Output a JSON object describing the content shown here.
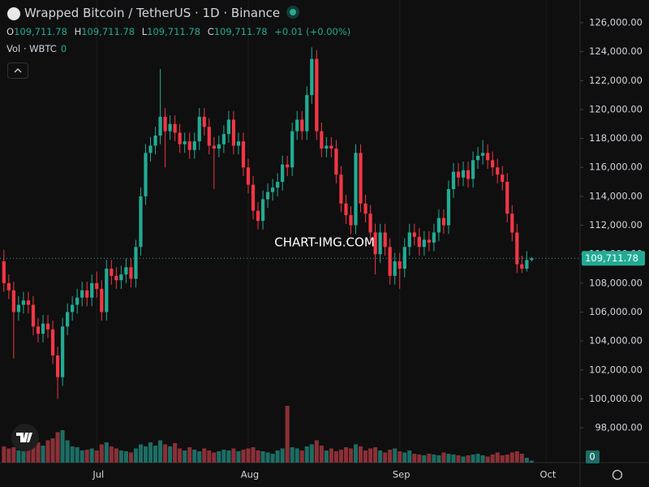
{
  "chart_data": {
    "type": "candlestick",
    "title": "Wrapped Bitcoin / TetherUS · 1D · Binance",
    "ohlc_legend": [
      {
        "label": "O",
        "value": "109,711.78"
      },
      {
        "label": "H",
        "value": "109,711.78"
      },
      {
        "label": "L",
        "value": "109,711.78"
      },
      {
        "label": "C",
        "value": "109,711.78"
      }
    ],
    "change": "+0.01 (+0.00%)",
    "volume_legend": {
      "label": "Vol · WBTC",
      "value": "0"
    },
    "watermark": "CHART-IMG.COM",
    "last_price_label": "109,711.78",
    "up_color": "#22ab94",
    "down_color": "#f23645",
    "up_volume_color": "#1d6d64",
    "down_volume_color": "#8a3037",
    "grid": true,
    "xlim": [
      -0.8,
      117.9
    ],
    "xticks": [
      {
        "value": 19,
        "label": "Jul"
      },
      {
        "value": 50,
        "label": "Aug"
      },
      {
        "value": 81,
        "label": "Sep"
      },
      {
        "value": 111,
        "label": "Oct"
      }
    ],
    "ylim": [
      95590,
      127570
    ],
    "yticks": [
      {
        "value": 98000,
        "label": "98,000.00"
      },
      {
        "value": 100000,
        "label": "100,000.00"
      },
      {
        "value": 102000,
        "label": "102,000.00"
      },
      {
        "value": 104000,
        "label": "104,000.00"
      },
      {
        "value": 106000,
        "label": "106,000.00"
      },
      {
        "value": 108000,
        "label": "108,000.00"
      },
      {
        "value": 110000,
        "label": "110,000.00"
      },
      {
        "value": 112000,
        "label": "112,000.00"
      },
      {
        "value": 114000,
        "label": "114,000.00"
      },
      {
        "value": 116000,
        "label": "116,000.00"
      },
      {
        "value": 118000,
        "label": "118,000.00"
      },
      {
        "value": 120000,
        "label": "120,000.00"
      },
      {
        "value": 122000,
        "label": "122,000.00"
      },
      {
        "value": 124000,
        "label": "124,000.00"
      },
      {
        "value": 126000,
        "label": "126,000.00"
      }
    ],
    "volume_lim": [
      0,
      400
    ],
    "volume_ticks": [
      0
    ],
    "open": [
      109500,
      108000,
      107500,
      106000,
      106500,
      106800,
      106500,
      105000,
      104500,
      105200,
      104800,
      103000,
      101500,
      105000,
      106000,
      106500,
      107000,
      107500,
      107000,
      108000,
      107600,
      106000,
      109000,
      108500,
      108200,
      108600,
      109100,
      108300,
      110500,
      114000,
      117000,
      117500,
      118200,
      119500,
      118500,
      119000,
      118400,
      117600,
      117800,
      117200,
      117800,
      119500,
      118800,
      117500,
      117300,
      117600,
      118300,
      119300,
      117500,
      117800,
      116000,
      114800,
      113000,
      112300,
      113800,
      114300,
      114600,
      115000,
      116200,
      116000,
      118500,
      119300,
      118500,
      121000,
      123500,
      118500,
      117300,
      117500,
      117300,
      115500,
      113500,
      112700,
      112000,
      117000,
      113500,
      112800,
      111500,
      110000,
      111500,
      110500,
      108500,
      109500,
      109000,
      110500,
      111500,
      111200,
      110500,
      111000,
      110800,
      111500,
      112500,
      112000,
      114500,
      115700,
      115300,
      115800,
      115200,
      116500,
      116800,
      117000,
      116500,
      116000,
      115500,
      115000,
      112800,
      111500,
      109300,
      109000,
      109600
    ],
    "high": [
      110300,
      108600,
      108100,
      107100,
      107400,
      107400,
      107100,
      105600,
      105800,
      105800,
      105400,
      103600,
      105600,
      106600,
      107100,
      107600,
      108100,
      108100,
      108600,
      108800,
      108200,
      109600,
      109600,
      109100,
      109200,
      109700,
      109700,
      111000,
      114600,
      117600,
      118100,
      118800,
      122800,
      120100,
      119600,
      119600,
      119000,
      118400,
      118400,
      118400,
      120100,
      120100,
      119400,
      118100,
      118200,
      118900,
      119900,
      119900,
      118400,
      118400,
      116600,
      115400,
      113600,
      114400,
      114900,
      115200,
      115600,
      116800,
      116800,
      119100,
      119900,
      119900,
      121600,
      124300,
      124100,
      119100,
      118100,
      118100,
      117900,
      116100,
      114100,
      113300,
      117600,
      117600,
      114100,
      113400,
      112100,
      112100,
      112100,
      111100,
      110100,
      110100,
      111100,
      112100,
      112100,
      111800,
      111600,
      111600,
      112100,
      113100,
      113100,
      115100,
      116300,
      116300,
      116400,
      116400,
      117100,
      117400,
      117900,
      117600,
      117100,
      116600,
      116100,
      115600,
      113400,
      112100,
      109900,
      110200,
      109800
    ],
    "low": [
      107400,
      106900,
      102800,
      105400,
      105900,
      105900,
      104400,
      103900,
      103900,
      104200,
      102400,
      100000,
      100900,
      104400,
      105400,
      105900,
      106400,
      106400,
      106400,
      107000,
      105400,
      105400,
      107900,
      107600,
      107600,
      108000,
      107700,
      107700,
      109900,
      113400,
      116400,
      116900,
      117600,
      116000,
      117900,
      117800,
      117000,
      117000,
      116600,
      116600,
      117200,
      118200,
      116900,
      114500,
      116700,
      117000,
      117700,
      116900,
      116900,
      115400,
      114200,
      112400,
      111700,
      111700,
      113200,
      113700,
      114000,
      114400,
      115400,
      115400,
      117900,
      117900,
      117900,
      120400,
      117900,
      116700,
      116700,
      116700,
      114900,
      112900,
      112100,
      111400,
      111400,
      112900,
      112200,
      110900,
      108600,
      109400,
      109900,
      107900,
      107900,
      107600,
      108400,
      109900,
      110600,
      109900,
      109900,
      110200,
      110200,
      110900,
      111400,
      111400,
      113900,
      114700,
      114700,
      114600,
      114600,
      115900,
      116200,
      115900,
      115400,
      114900,
      114400,
      112200,
      110900,
      108700,
      108700,
      108800,
      109500
    ],
    "close": [
      108000,
      107500,
      106000,
      106500,
      106800,
      106500,
      105000,
      104500,
      105200,
      104800,
      103000,
      101500,
      105000,
      106000,
      106500,
      107000,
      107500,
      107000,
      108000,
      107600,
      106000,
      109000,
      108500,
      108200,
      108600,
      109100,
      108300,
      110500,
      114000,
      117000,
      117500,
      118200,
      119500,
      118500,
      119000,
      118400,
      117600,
      117800,
      117200,
      117800,
      119500,
      118800,
      117500,
      117300,
      117600,
      118300,
      119300,
      117500,
      117800,
      116000,
      114800,
      113000,
      112300,
      113800,
      114300,
      114600,
      115000,
      116200,
      116000,
      118500,
      119300,
      118500,
      121000,
      123500,
      118500,
      117300,
      117500,
      117300,
      115500,
      113500,
      112700,
      112000,
      117000,
      113500,
      112800,
      111500,
      110000,
      111500,
      110500,
      108500,
      109500,
      109000,
      110500,
      111500,
      111200,
      110500,
      111000,
      110800,
      111500,
      112500,
      112000,
      114500,
      115700,
      115300,
      115800,
      115200,
      116500,
      116800,
      117000,
      116500,
      116000,
      115500,
      115000,
      112800,
      111500,
      109300,
      109000,
      109600,
      109711.78
    ],
    "volume": [
      40,
      35,
      38,
      30,
      28,
      35,
      45,
      50,
      42,
      55,
      60,
      75,
      80,
      55,
      40,
      38,
      30,
      32,
      35,
      30,
      45,
      50,
      40,
      35,
      30,
      28,
      25,
      35,
      45,
      40,
      50,
      42,
      55,
      45,
      40,
      48,
      35,
      30,
      38,
      32,
      28,
      35,
      30,
      25,
      28,
      32,
      30,
      35,
      28,
      32,
      35,
      38,
      30,
      28,
      25,
      22,
      30,
      35,
      140,
      38,
      35,
      30,
      40,
      45,
      55,
      42,
      30,
      35,
      28,
      32,
      38,
      35,
      45,
      40,
      30,
      35,
      38,
      30,
      25,
      32,
      35,
      28,
      25,
      30,
      22,
      20,
      18,
      22,
      20,
      18,
      25,
      22,
      20,
      18,
      15,
      18,
      20,
      22,
      18,
      15,
      20,
      25,
      18,
      20,
      25,
      28,
      22,
      12,
      5
    ]
  }
}
